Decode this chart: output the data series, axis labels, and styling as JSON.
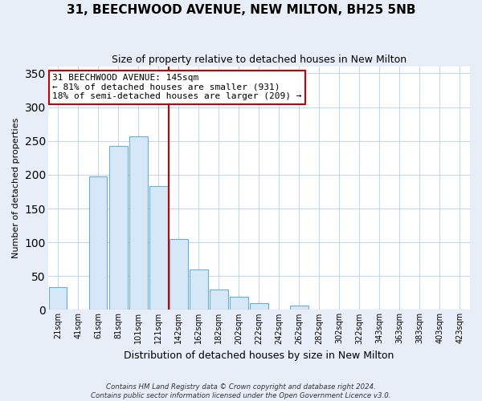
{
  "title": "31, BEECHWOOD AVENUE, NEW MILTON, BH25 5NB",
  "subtitle": "Size of property relative to detached houses in New Milton",
  "xlabel": "Distribution of detached houses by size in New Milton",
  "ylabel": "Number of detached properties",
  "bar_labels": [
    "21sqm",
    "41sqm",
    "61sqm",
    "81sqm",
    "101sqm",
    "121sqm",
    "142sqm",
    "162sqm",
    "182sqm",
    "202sqm",
    "222sqm",
    "242sqm",
    "262sqm",
    "282sqm",
    "302sqm",
    "322sqm",
    "343sqm",
    "363sqm",
    "383sqm",
    "403sqm",
    "423sqm"
  ],
  "bar_heights": [
    34,
    0,
    198,
    242,
    257,
    183,
    105,
    60,
    30,
    20,
    10,
    0,
    6,
    0,
    0,
    0,
    0,
    0,
    0,
    0,
    1
  ],
  "bar_color": "#d6e8f7",
  "bar_edge_color": "#6aaed6",
  "vline_x_index": 6,
  "vline_color": "#cc0000",
  "annotation_lines": [
    "31 BEECHWOOD AVENUE: 145sqm",
    "← 81% of detached houses are smaller (931)",
    "18% of semi-detached houses are larger (209) →"
  ],
  "annotation_box_color": "#ffffff",
  "annotation_box_edgecolor": "#cc0000",
  "ylim": [
    0,
    360
  ],
  "yticks": [
    0,
    50,
    100,
    150,
    200,
    250,
    300,
    350
  ],
  "footnote1": "Contains HM Land Registry data © Crown copyright and database right 2024.",
  "footnote2": "Contains public sector information licensed under the Open Government Licence v3.0.",
  "bg_color": "#e8eef8",
  "plot_bg_color": "#ffffff",
  "grid_color": "#c8d8ec",
  "title_fontsize": 11,
  "subtitle_fontsize": 9
}
